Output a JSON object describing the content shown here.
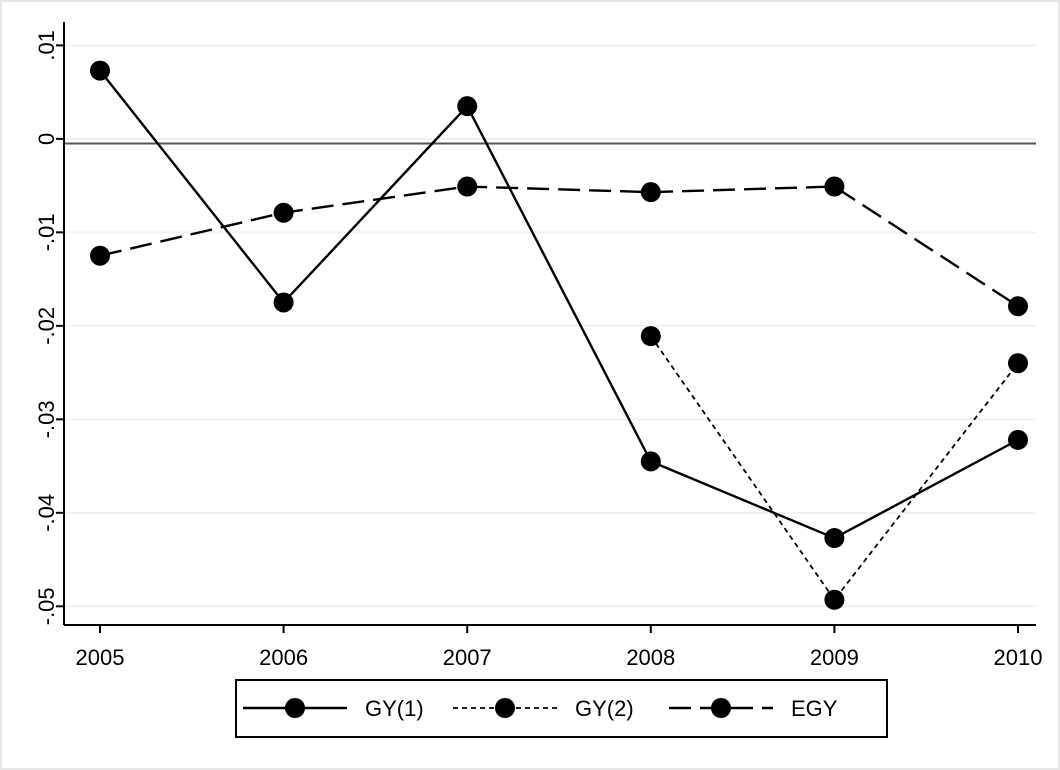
{
  "chart_data": {
    "type": "line",
    "title": "",
    "xlabel": "",
    "ylabel": "",
    "x": [
      2005,
      2006,
      2007,
      2008,
      2009,
      2010
    ],
    "x_tick_labels": [
      "2005",
      "2006",
      "2007",
      "2008",
      "2009",
      "2010"
    ],
    "y_ticks": [
      0.01,
      0,
      -0.01,
      -0.02,
      -0.03,
      -0.04,
      -0.05
    ],
    "y_tick_labels": [
      ".01",
      "0",
      "-.01",
      "-.02",
      "-.03",
      "-.04",
      "-.05"
    ],
    "xlim": [
      2005,
      2010
    ],
    "ylim": [
      -0.052,
      0.0125
    ],
    "reference_line_y": -0.0005,
    "grid": true,
    "legend_position": "bottom",
    "series": [
      {
        "name": "GY(1)",
        "style": "solid",
        "values": [
          0.0073,
          -0.0175,
          0.0035,
          -0.0345,
          -0.0427,
          -0.0322
        ]
      },
      {
        "name": "GY(2)",
        "style": "dotted",
        "values": [
          null,
          null,
          null,
          -0.0211,
          -0.0493,
          -0.024
        ]
      },
      {
        "name": "EGY",
        "style": "dashed",
        "values": [
          -0.0125,
          -0.0079,
          -0.0051,
          -0.0057,
          -0.0051,
          -0.0179
        ]
      }
    ]
  }
}
